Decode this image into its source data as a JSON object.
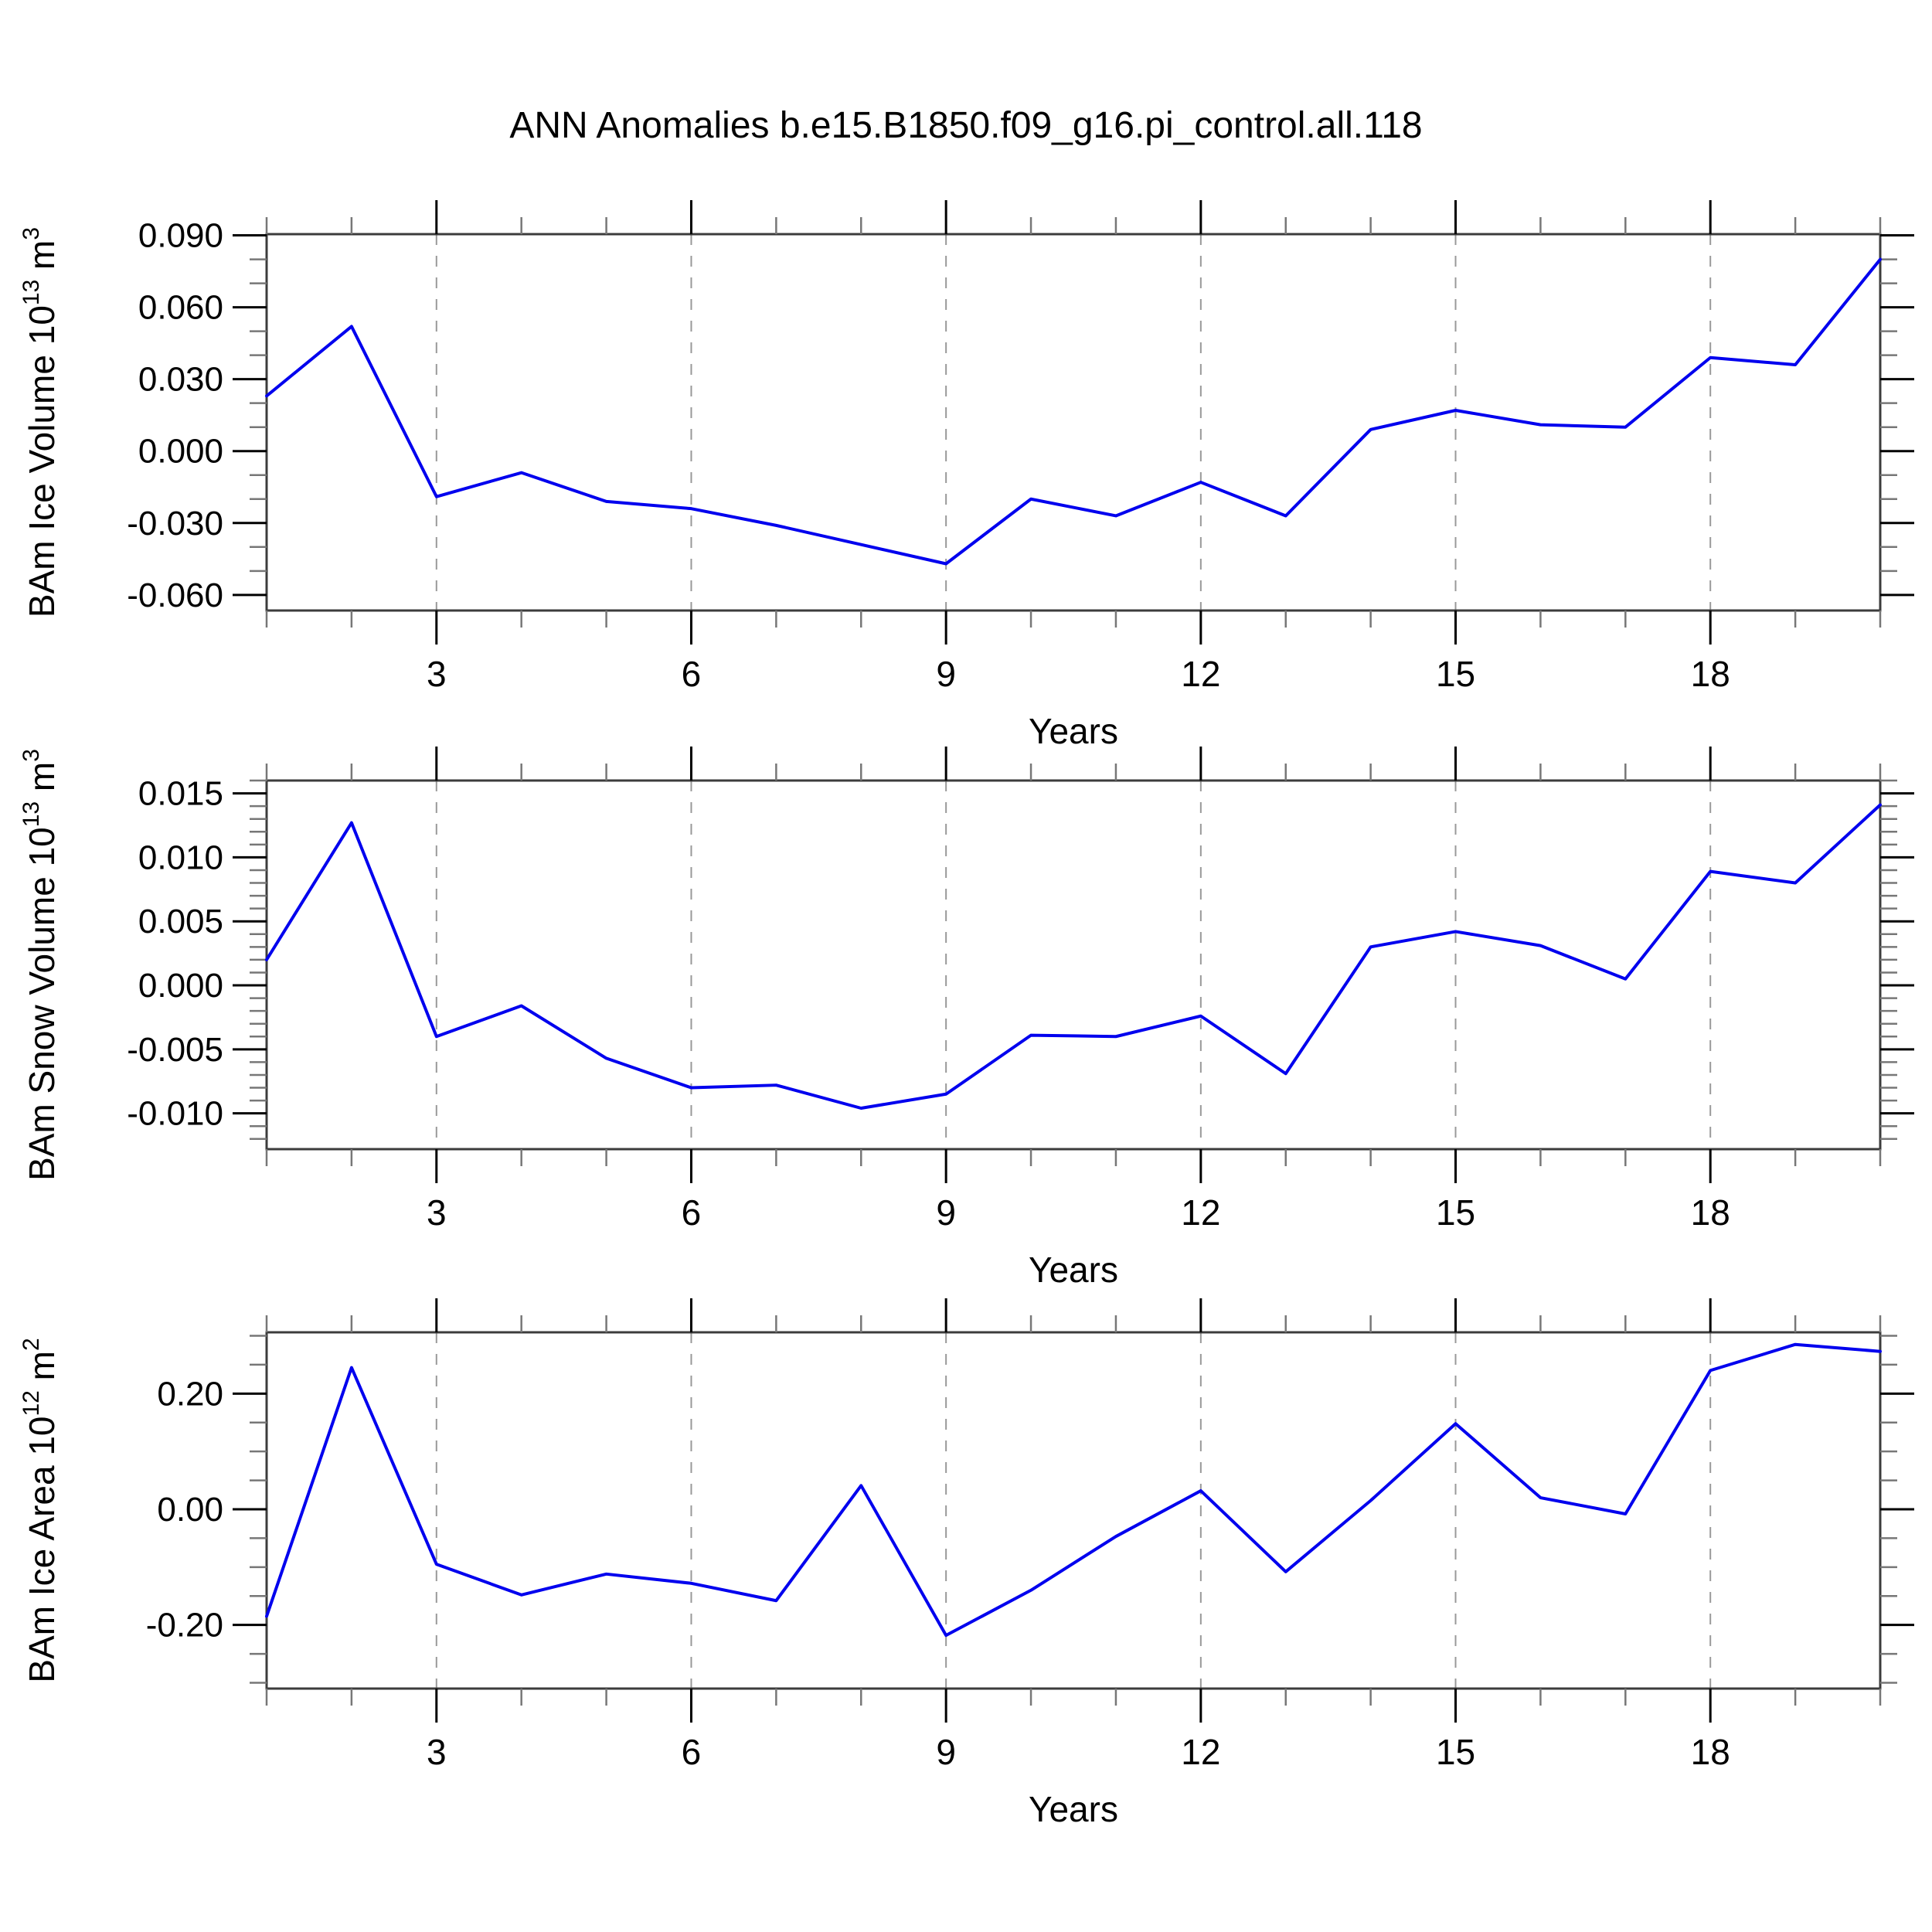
{
  "page": {
    "title": "ANN Anomalies b.e15.B1850.f09_g16.pi_control.all.118",
    "background": "#ffffff"
  },
  "style": {
    "line_color": "#0000ee",
    "box_color": "#3c3c3c",
    "major_tick_color": "#000000",
    "minor_tick_color": "#777777",
    "gridline_color": "#999999",
    "text_color": "#000000"
  },
  "chart_data": [
    {
      "type": "line",
      "title": "",
      "ylabel_segments": [
        [
          "BAm Ice Volume 10",
          "n"
        ],
        [
          "13",
          "sup"
        ],
        [
          " m",
          "n"
        ],
        [
          "3",
          "sup"
        ]
      ],
      "xlabel": "Years",
      "x": [
        1,
        2,
        3,
        4,
        5,
        6,
        7,
        8,
        9,
        10,
        11,
        12,
        13,
        14,
        15,
        16,
        17,
        18,
        19,
        20
      ],
      "values": [
        0.023,
        0.052,
        -0.019,
        -0.009,
        -0.021,
        -0.024,
        -0.031,
        -0.039,
        -0.047,
        -0.02,
        -0.027,
        -0.013,
        -0.027,
        0.009,
        0.017,
        0.011,
        0.01,
        0.039,
        0.036,
        0.08
      ],
      "xlim": [
        1,
        20
      ],
      "ylim": [
        -0.0665,
        0.0905
      ],
      "yticks_major": [
        {
          "v": 0.09,
          "label": "0.090"
        },
        {
          "v": 0.06,
          "label": "0.060"
        },
        {
          "v": 0.03,
          "label": "0.030"
        },
        {
          "v": 0.0,
          "label": "0.000"
        },
        {
          "v": -0.03,
          "label": "-0.030"
        },
        {
          "v": -0.06,
          "label": "-0.060"
        }
      ],
      "ytick_minor_step": 0.01,
      "xticks_major": [
        {
          "v": 3,
          "label": "3"
        },
        {
          "v": 6,
          "label": "6"
        },
        {
          "v": 9,
          "label": "9"
        },
        {
          "v": 12,
          "label": "12"
        },
        {
          "v": 15,
          "label": "15"
        },
        {
          "v": 18,
          "label": "18"
        }
      ],
      "xtick_minor_step": 1,
      "grid": "vertical dashed lines at major x ticks",
      "legend": "none"
    },
    {
      "type": "line",
      "title": "",
      "ylabel_segments": [
        [
          "BAm Snow Volume 10",
          "n"
        ],
        [
          "13",
          "sup"
        ],
        [
          " m",
          "n"
        ],
        [
          "3",
          "sup"
        ]
      ],
      "xlabel": "Years",
      "x": [
        1,
        2,
        3,
        4,
        5,
        6,
        7,
        8,
        9,
        10,
        11,
        12,
        13,
        14,
        15,
        16,
        17,
        18,
        19,
        20
      ],
      "values": [
        0.002,
        0.0127,
        -0.004,
        -0.0016,
        -0.0057,
        -0.008,
        -0.0078,
        -0.0096,
        -0.0085,
        -0.0039,
        -0.004,
        -0.0024,
        -0.0069,
        0.003,
        0.0042,
        0.0031,
        0.0005,
        0.0089,
        0.008,
        0.0141
      ],
      "xlim": [
        1,
        20
      ],
      "ylim": [
        -0.0128,
        0.016
      ],
      "yticks_major": [
        {
          "v": 0.015,
          "label": "0.015"
        },
        {
          "v": 0.01,
          "label": "0.010"
        },
        {
          "v": 0.005,
          "label": "0.005"
        },
        {
          "v": 0.0,
          "label": "0.000"
        },
        {
          "v": -0.005,
          "label": "-0.005"
        },
        {
          "v": -0.01,
          "label": "-0.010"
        }
      ],
      "ytick_minor_step": 0.001,
      "xticks_major": [
        {
          "v": 3,
          "label": "3"
        },
        {
          "v": 6,
          "label": "6"
        },
        {
          "v": 9,
          "label": "9"
        },
        {
          "v": 12,
          "label": "12"
        },
        {
          "v": 15,
          "label": "15"
        },
        {
          "v": 18,
          "label": "18"
        }
      ],
      "xtick_minor_step": 1,
      "grid": "vertical dashed lines at major x ticks",
      "legend": "none"
    },
    {
      "type": "line",
      "title": "",
      "ylabel_segments": [
        [
          "BAm Ice Area 10",
          "n"
        ],
        [
          "12",
          "sup"
        ],
        [
          " m",
          "n"
        ],
        [
          "2",
          "sup"
        ]
      ],
      "xlabel": "Years",
      "x": [
        1,
        2,
        3,
        4,
        5,
        6,
        7,
        8,
        9,
        10,
        11,
        12,
        13,
        14,
        15,
        16,
        17,
        18,
        19,
        20
      ],
      "values": [
        -0.185,
        0.245,
        -0.095,
        -0.148,
        -0.112,
        -0.128,
        -0.158,
        0.041,
        -0.218,
        -0.14,
        -0.047,
        0.032,
        -0.108,
        0.015,
        0.148,
        0.02,
        -0.008,
        0.24,
        0.285,
        0.273
      ],
      "xlim": [
        1,
        20
      ],
      "ylim": [
        -0.31,
        0.306
      ],
      "yticks_major": [
        {
          "v": 0.2,
          "label": "0.20"
        },
        {
          "v": 0.0,
          "label": "0.00"
        },
        {
          "v": -0.2,
          "label": "-0.20"
        }
      ],
      "ytick_minor_step": 0.05,
      "xticks_major": [
        {
          "v": 3,
          "label": "3"
        },
        {
          "v": 6,
          "label": "6"
        },
        {
          "v": 9,
          "label": "9"
        },
        {
          "v": 12,
          "label": "12"
        },
        {
          "v": 15,
          "label": "15"
        },
        {
          "v": 18,
          "label": "18"
        }
      ],
      "xtick_minor_step": 1,
      "grid": "vertical dashed lines at major x ticks",
      "legend": "none"
    }
  ]
}
